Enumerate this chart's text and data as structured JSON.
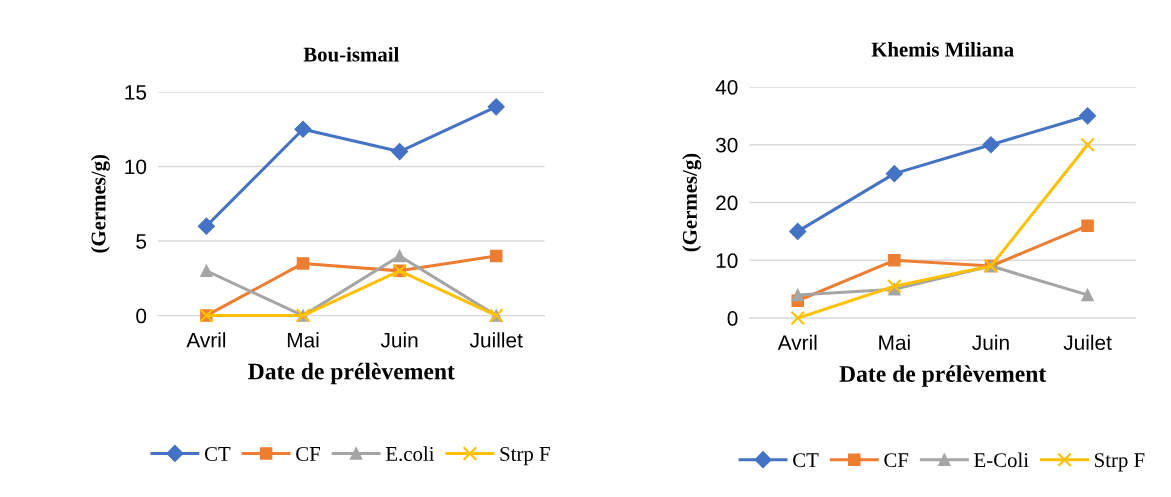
{
  "chart_data": [
    {
      "type": "line",
      "title": "Bou-ismail",
      "xlabel": "Date de prélèvement",
      "ylabel": "(Germes/g)",
      "categories": [
        "Avril",
        "Mai",
        "Juin",
        "Juillet"
      ],
      "ylim": [
        0,
        15
      ],
      "yticks": [
        0,
        5,
        10,
        15
      ],
      "grid": "y",
      "legend": "bottom",
      "series": [
        {
          "name": "CT",
          "color": "#4472c4",
          "marker": "diamond",
          "values": [
            6,
            12.5,
            11,
            14
          ]
        },
        {
          "name": "CF",
          "color": "#ed7d31",
          "marker": "square",
          "values": [
            0,
            3.5,
            3,
            4
          ]
        },
        {
          "name": "E.coli",
          "color": "#a5a5a5",
          "marker": "triangle",
          "values": [
            3,
            0,
            4,
            0
          ]
        },
        {
          "name": "Strp F",
          "color": "#ffc000",
          "marker": "cross",
          "values": [
            0,
            0,
            3,
            0
          ]
        }
      ]
    },
    {
      "type": "line",
      "title": "Khemis Miliana",
      "xlabel": "Date de prélèvement",
      "ylabel": "(Germes/g)",
      "categories": [
        "Avril",
        "Mai",
        "Juin",
        "Juilet"
      ],
      "ylim": [
        0,
        40
      ],
      "yticks": [
        0,
        10,
        20,
        30,
        40
      ],
      "grid": "y",
      "legend": "bottom",
      "series": [
        {
          "name": "CT",
          "color": "#4472c4",
          "marker": "diamond",
          "values": [
            15,
            25,
            30,
            35
          ]
        },
        {
          "name": "CF",
          "color": "#ed7d31",
          "marker": "square",
          "values": [
            3,
            10,
            9,
            16
          ]
        },
        {
          "name": "E-Coli",
          "color": "#a5a5a5",
          "marker": "triangle",
          "values": [
            4,
            5,
            9,
            4
          ]
        },
        {
          "name": "Strp F",
          "color": "#ffc000",
          "marker": "cross",
          "values": [
            0,
            5.5,
            9,
            30
          ]
        }
      ]
    }
  ]
}
